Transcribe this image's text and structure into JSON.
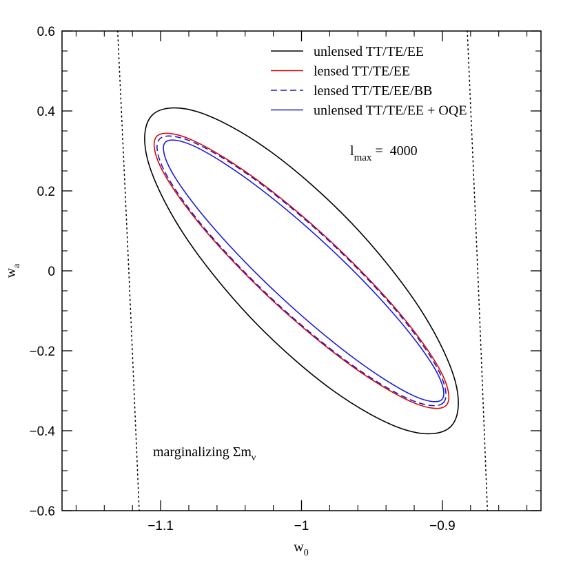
{
  "chart_data": {
    "type": "contour",
    "xlabel": {
      "text": "w",
      "sub": "0"
    },
    "ylabel": {
      "text": "w",
      "sub": "a"
    },
    "xlim": [
      -1.17,
      -0.83
    ],
    "ylim": [
      -0.6,
      0.6
    ],
    "xticks": [
      {
        "value": -1.1,
        "label": "−1.1"
      },
      {
        "value": -1,
        "label": "−1"
      },
      {
        "value": -0.9,
        "label": "−0.9"
      }
    ],
    "xticks_minor": [
      -1.16,
      -1.14,
      -1.12,
      -1.08,
      -1.06,
      -1.04,
      -1.02,
      -0.98,
      -0.96,
      -0.94,
      -0.92,
      -0.88,
      -0.86,
      -0.84
    ],
    "yticks": [
      {
        "value": -0.6,
        "label": "−0.6"
      },
      {
        "value": -0.4,
        "label": "−0.4"
      },
      {
        "value": -0.2,
        "label": "−0.2"
      },
      0,
      0.2,
      0.4,
      0.6
    ],
    "yticks_minor": [
      -0.55,
      -0.5,
      -0.45,
      -0.35,
      -0.3,
      -0.25,
      -0.15,
      -0.1,
      -0.05,
      0.05,
      0.1,
      0.15,
      0.25,
      0.3,
      0.35,
      0.45,
      0.5,
      0.55
    ],
    "legend": "upper right",
    "series": [
      {
        "name": "unlensed TT/TE/EE",
        "color": "#000000",
        "style": "solid",
        "x": [
          -0.8943,
          -0.9263,
          -0.9781,
          -1.0357,
          -1.0837,
          -1.1093,
          -1.1057,
          -1.0737,
          -1.0219,
          -0.9643,
          -0.9163,
          -0.8907
        ],
        "y": [
          -0.3905,
          -0.3978,
          -0.2983,
          -0.1188,
          0.0924,
          0.2788,
          0.3905,
          0.3978,
          0.2983,
          0.1188,
          -0.0924,
          -0.2788
        ]
      },
      {
        "name": "lensed TT/TE/EE",
        "color": "#e00000",
        "style": "solid",
        "x": [
          -0.8972,
          -0.9211,
          -0.9661,
          -1.0201,
          -1.0688,
          -1.0991,
          -1.1028,
          -1.0789,
          -1.0339,
          -0.9799,
          -0.9312,
          -0.9009
        ],
        "y": [
          -0.3364,
          -0.329,
          -0.2336,
          -0.0757,
          0.1026,
          0.2534,
          0.3364,
          0.329,
          0.2336,
          0.0757,
          -0.1026,
          -0.2534
        ]
      },
      {
        "name": "lensed TT/TE/EE/BB",
        "color": "#1a1acc",
        "style": "dashed",
        "x": [
          -0.8992,
          -0.9227,
          -0.9668,
          -1.0197,
          -1.0674,
          -1.0971,
          -1.1008,
          -1.0773,
          -1.0332,
          -0.9803,
          -0.9326,
          -0.9029
        ],
        "y": [
          -0.3297,
          -0.3224,
          -0.2289,
          -0.0742,
          0.1005,
          0.2483,
          0.3297,
          0.3224,
          0.2289,
          0.0742,
          -0.1005,
          -0.2483
        ]
      },
      {
        "name": "unlensed TT/TE/EE + OQE",
        "color": "#1a1add",
        "style": "solid",
        "x": [
          -0.9003,
          -0.9218,
          -0.9639,
          -1.0153,
          -1.0621,
          -1.092,
          -1.0967,
          -1.0752,
          -1.0331,
          -0.9817,
          -0.9349,
          -0.905
        ],
        "y": [
          -0.3216,
          -0.3102,
          -0.2155,
          -0.0631,
          0.1062,
          0.2471,
          0.3216,
          0.3102,
          0.2155,
          0.0631,
          -0.1062,
          -0.2471
        ]
      }
    ],
    "dotted_curves": [
      {
        "color": "#000000",
        "style": "dotted",
        "x": [
          -1.1305,
          -1.1226,
          -1.1152
        ],
        "y": [
          0.6,
          0,
          -0.6
        ]
      },
      {
        "color": "#000000",
        "style": "dotted",
        "x": [
          -0.8823,
          -0.8749,
          -0.868
        ],
        "y": [
          0.6,
          0,
          -0.6
        ]
      }
    ],
    "annotations": [
      {
        "text": "l",
        "sub": "max",
        "tail": " =  4000"
      },
      {
        "text": "marginalizing Σm",
        "sub": "ν"
      }
    ]
  }
}
